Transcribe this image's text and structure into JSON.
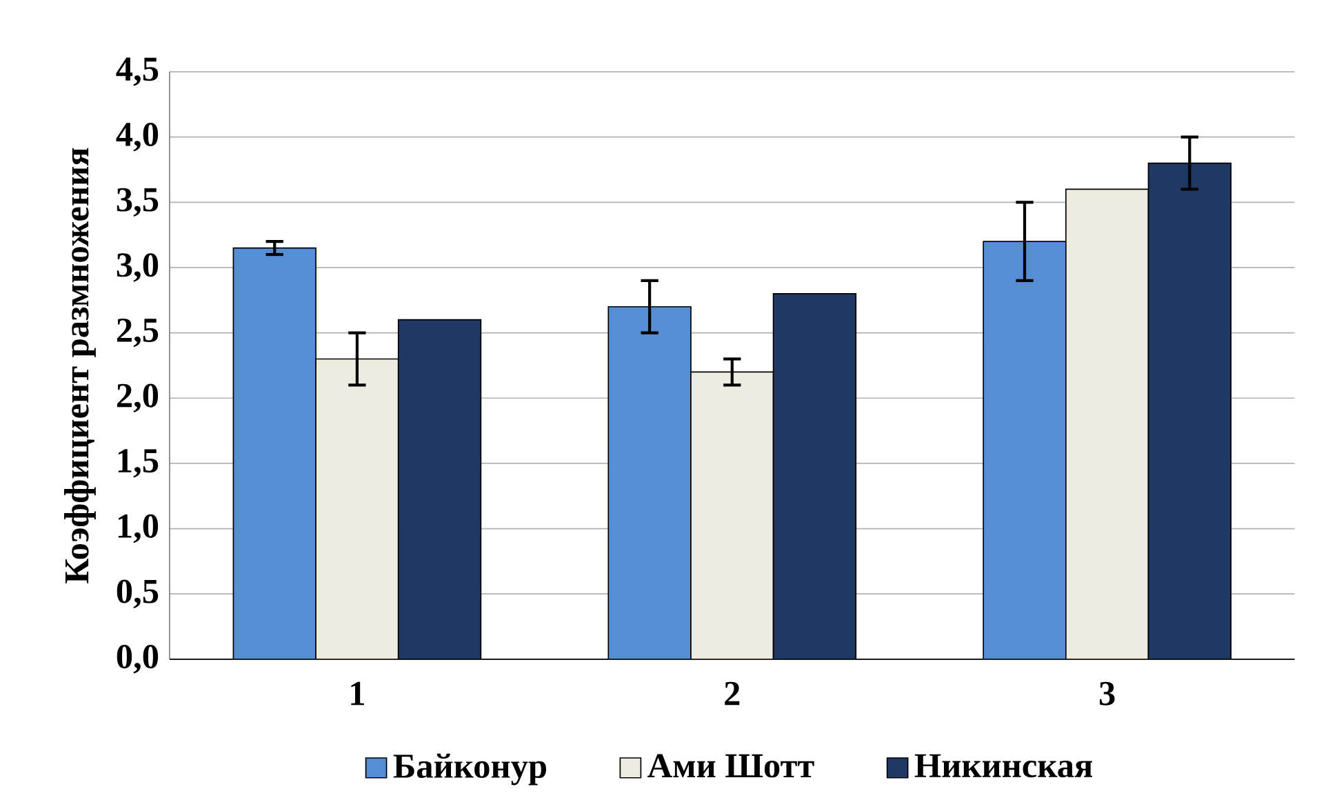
{
  "chart_data": {
    "type": "bar",
    "ylabel": "Коэффициент   размножения",
    "categories": [
      "1",
      "2",
      "3"
    ],
    "series": [
      {
        "name": "Байконур",
        "color": "#558ed5",
        "values": [
          3.15,
          2.7,
          3.2
        ],
        "errors": [
          0.05,
          0.2,
          0.3
        ]
      },
      {
        "name": "Ами Шотт",
        "color": "#eeece1",
        "values": [
          2.3,
          2.2,
          3.6
        ],
        "errors": [
          0.2,
          0.1,
          null
        ]
      },
      {
        "name": "Никинская",
        "color": "#1f3864",
        "values": [
          2.6,
          2.8,
          3.8
        ],
        "errors": [
          null,
          null,
          0.2
        ]
      }
    ],
    "ylim": [
      0,
      4.5
    ],
    "yticks": [
      {
        "value": 0,
        "label": "0,0"
      },
      {
        "value": 0.5,
        "label": "0,5"
      },
      {
        "value": 1,
        "label": "1,0"
      },
      {
        "value": 1.5,
        "label": "1,5"
      },
      {
        "value": 2,
        "label": "2,0"
      },
      {
        "value": 2.5,
        "label": "2,5"
      },
      {
        "value": 3,
        "label": "3,0"
      },
      {
        "value": 3.5,
        "label": "3,5"
      },
      {
        "value": 4,
        "label": "4,0"
      },
      {
        "value": 4.5,
        "label": "4,5"
      }
    ],
    "grid": "y",
    "legend": "bottom"
  }
}
